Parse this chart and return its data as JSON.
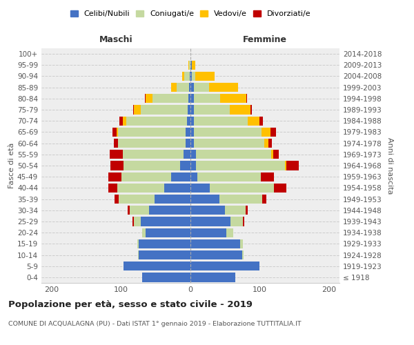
{
  "age_groups": [
    "100+",
    "95-99",
    "90-94",
    "85-89",
    "80-84",
    "75-79",
    "70-74",
    "65-69",
    "60-64",
    "55-59",
    "50-54",
    "45-49",
    "40-44",
    "35-39",
    "30-34",
    "25-29",
    "20-24",
    "15-19",
    "10-14",
    "5-9",
    "0-4"
  ],
  "birth_years": [
    "≤ 1918",
    "1919-1923",
    "1924-1928",
    "1929-1933",
    "1934-1938",
    "1939-1943",
    "1944-1948",
    "1949-1953",
    "1954-1958",
    "1959-1963",
    "1964-1968",
    "1969-1973",
    "1974-1978",
    "1979-1983",
    "1984-1988",
    "1989-1993",
    "1994-1998",
    "1999-2003",
    "2004-2008",
    "2009-2013",
    "2014-2018"
  ],
  "males": {
    "celibe": [
      0,
      0,
      1,
      2,
      3,
      4,
      5,
      7,
      7,
      10,
      15,
      28,
      38,
      52,
      60,
      72,
      65,
      75,
      75,
      97,
      70
    ],
    "coniugato": [
      0,
      2,
      8,
      18,
      52,
      68,
      88,
      98,
      98,
      88,
      82,
      72,
      68,
      52,
      28,
      10,
      5,
      2,
      1,
      0,
      0
    ],
    "vedovo": [
      0,
      1,
      3,
      8,
      10,
      10,
      5,
      2,
      0,
      0,
      0,
      0,
      0,
      0,
      0,
      0,
      0,
      0,
      0,
      0,
      0
    ],
    "divorziato": [
      0,
      0,
      0,
      0,
      1,
      1,
      5,
      5,
      5,
      18,
      18,
      18,
      12,
      5,
      3,
      2,
      0,
      0,
      0,
      0,
      0
    ]
  },
  "females": {
    "nubile": [
      0,
      2,
      2,
      5,
      5,
      5,
      5,
      5,
      5,
      8,
      8,
      10,
      28,
      42,
      50,
      58,
      52,
      72,
      75,
      100,
      65
    ],
    "coniugata": [
      0,
      0,
      5,
      22,
      38,
      52,
      78,
      98,
      102,
      108,
      128,
      92,
      92,
      62,
      30,
      18,
      10,
      4,
      2,
      0,
      0
    ],
    "vedova": [
      0,
      5,
      28,
      42,
      38,
      30,
      17,
      12,
      5,
      3,
      2,
      0,
      0,
      0,
      0,
      0,
      0,
      0,
      0,
      0,
      0
    ],
    "divorziata": [
      0,
      0,
      0,
      0,
      1,
      2,
      5,
      8,
      5,
      8,
      18,
      18,
      18,
      5,
      3,
      2,
      0,
      0,
      0,
      0,
      0
    ]
  },
  "colors": {
    "celibe": "#4472c4",
    "coniugato": "#c5d9a0",
    "vedovo": "#ffc000",
    "divorziato": "#c00000"
  },
  "legend_labels": [
    "Celibi/Nubili",
    "Coniugati/e",
    "Vedovi/e",
    "Divorziati/e"
  ],
  "title": "Popolazione per età, sesso e stato civile - 2019",
  "subtitle": "COMUNE DI ACQUALAGNA (PU) - Dati ISTAT 1° gennaio 2019 - Elaborazione TUTTITALIA.IT",
  "xlabel_left": "Maschi",
  "xlabel_right": "Femmine",
  "ylabel_left": "Fasce di età",
  "ylabel_right": "Anni di nascita",
  "xlim": 215,
  "background_color": "#eeeeee"
}
